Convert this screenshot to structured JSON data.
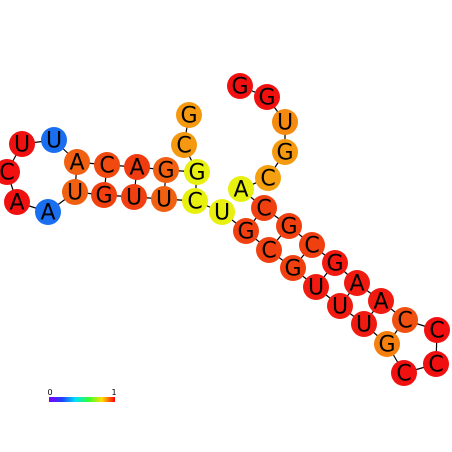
{
  "nodes": [
    {
      "label": "G",
      "color": "#f59a10"
    },
    {
      "label": "C",
      "color": "#f59a10"
    },
    {
      "label": "G",
      "color": "#e8f010"
    },
    {
      "label": "G",
      "color": "#f06010"
    },
    {
      "label": "A",
      "color": "#f03a10"
    },
    {
      "label": "C",
      "color": "#f04a10"
    },
    {
      "label": "A",
      "color": "#f06010"
    },
    {
      "label": "U",
      "color": "#1a6ef0"
    },
    {
      "label": "U",
      "color": "#f01010"
    },
    {
      "label": "C",
      "color": "#f01010"
    },
    {
      "label": "A",
      "color": "#f01010"
    },
    {
      "label": "A",
      "color": "#1a6ef0"
    },
    {
      "label": "U",
      "color": "#f06010"
    },
    {
      "label": "G",
      "color": "#f04010"
    },
    {
      "label": "U",
      "color": "#f04010"
    },
    {
      "label": "U",
      "color": "#f06010"
    },
    {
      "label": "C",
      "color": "#e8f010"
    },
    {
      "label": "U",
      "color": "#e8f010"
    },
    {
      "label": "G",
      "color": "#f04010"
    },
    {
      "label": "C",
      "color": "#f04010"
    },
    {
      "label": "G",
      "color": "#f04010"
    },
    {
      "label": "U",
      "color": "#f01a10"
    },
    {
      "label": "U",
      "color": "#f01a10"
    },
    {
      "label": "U",
      "color": "#f01a10"
    },
    {
      "label": "G",
      "color": "#f58010"
    },
    {
      "label": "C",
      "color": "#f01010"
    },
    {
      "label": "C",
      "color": "#f01010"
    },
    {
      "label": "C",
      "color": "#f01010"
    },
    {
      "label": "C",
      "color": "#f05010"
    },
    {
      "label": "A",
      "color": "#f01a10"
    },
    {
      "label": "A",
      "color": "#f01a10"
    },
    {
      "label": "G",
      "color": "#f01a10"
    },
    {
      "label": "C",
      "color": "#f04010"
    },
    {
      "label": "G",
      "color": "#f04010"
    },
    {
      "label": "C",
      "color": "#f04010"
    },
    {
      "label": "A",
      "color": "#e8f010"
    },
    {
      "label": "C",
      "color": "#f5a010"
    },
    {
      "label": "G",
      "color": "#f59a10"
    },
    {
      "label": "U",
      "color": "#f58a10"
    },
    {
      "label": "G",
      "color": "#f01010"
    },
    {
      "label": "G",
      "color": "#f01010"
    }
  ],
  "scale": {
    "min": 0,
    "max": 1
  }
}
